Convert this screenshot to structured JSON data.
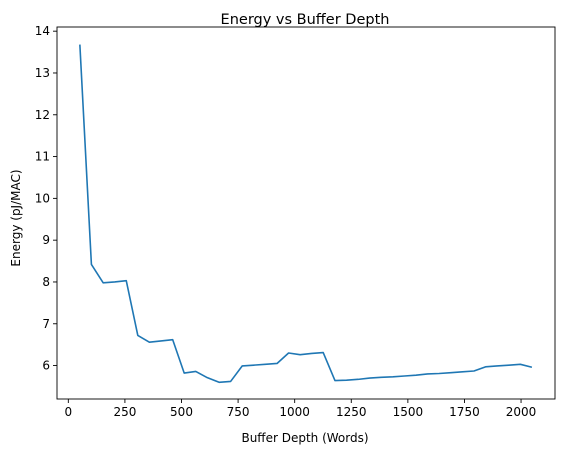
{
  "chart_data": {
    "type": "line",
    "title": "Energy vs Buffer Depth",
    "xlabel": "Buffer Depth (Words)",
    "ylabel": "Energy (pJ/MAC)",
    "xlim": [
      -50,
      2150
    ],
    "ylim": [
      5.2,
      14.1
    ],
    "xticks": [
      0,
      250,
      500,
      750,
      1000,
      1250,
      1500,
      1750,
      2000
    ],
    "yticks": [
      6,
      7,
      8,
      9,
      10,
      11,
      12,
      13,
      14
    ],
    "grid": false,
    "line_color": "#1f77b4",
    "series": [
      {
        "x": [
          51,
          102,
          154,
          205,
          256,
          307,
          358,
          410,
          461,
          512,
          563,
          614,
          666,
          717,
          768,
          819,
          870,
          922,
          973,
          1024,
          1075,
          1126,
          1178,
          1229,
          1280,
          1331,
          1382,
          1434,
          1485,
          1536,
          1587,
          1638,
          1690,
          1741,
          1792,
          1843,
          1894,
          1946,
          1997,
          2048
        ],
        "y": [
          13.68,
          8.42,
          7.98,
          8.0,
          8.03,
          6.72,
          6.56,
          6.59,
          6.62,
          5.82,
          5.86,
          5.71,
          5.6,
          5.62,
          5.99,
          6.01,
          6.03,
          6.05,
          6.3,
          6.26,
          6.29,
          6.31,
          5.64,
          5.65,
          5.67,
          5.7,
          5.72,
          5.73,
          5.75,
          5.77,
          5.8,
          5.81,
          5.83,
          5.85,
          5.87,
          5.97,
          5.99,
          6.01,
          6.03,
          5.96
        ]
      }
    ]
  }
}
